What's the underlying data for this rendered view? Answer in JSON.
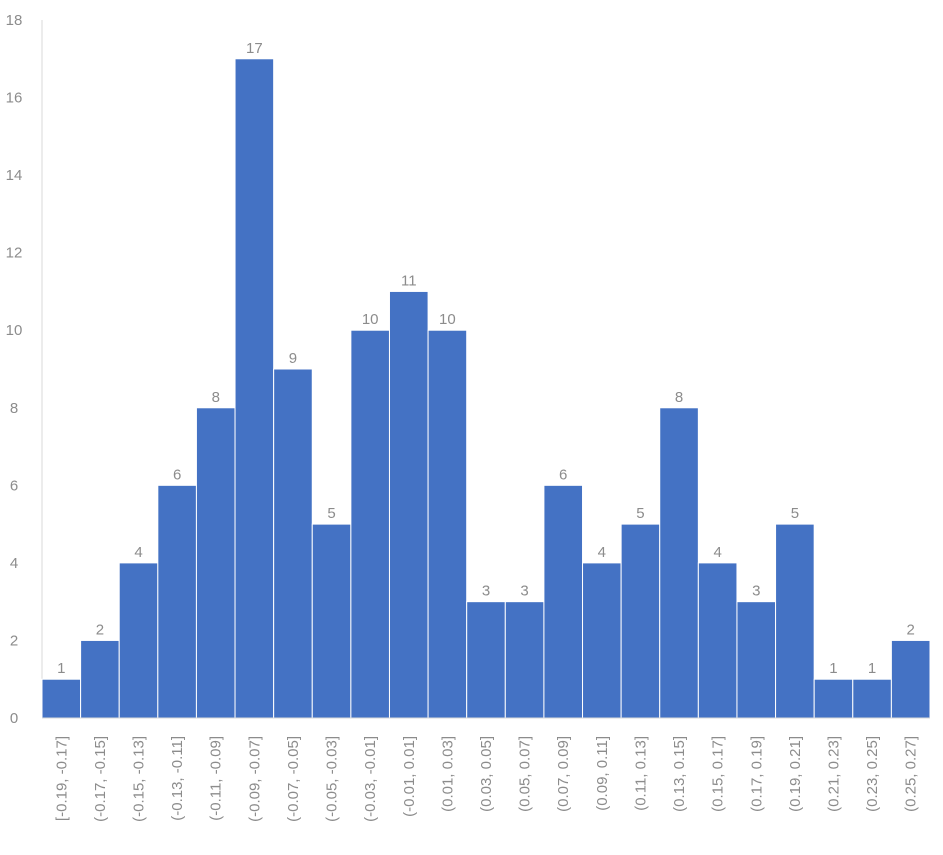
{
  "chart_data": {
    "type": "bar",
    "categories": [
      "[-0.19, -0.17]",
      "(-0.17, -0.15]",
      "(-0.15, -0.13]",
      "(-0.13, -0.11]",
      "(-0.11, -0.09]",
      "(-0.09, -0.07]",
      "(-0.07, -0.05]",
      "(-0.05, -0.03]",
      "(-0.03, -0.01]",
      "(-0.01, 0.01]",
      "(0.01, 0.03]",
      "(0.03, 0.05]",
      "(0.05, 0.07]",
      "(0.07, 0.09]",
      "(0.09, 0.11]",
      "(0.11, 0.13]",
      "(0.13, 0.15]",
      "(0.15, 0.17]",
      "(0.17, 0.19]",
      "(0.19, 0.21]",
      "(0.21, 0.23]",
      "(0.23, 0.25]",
      "(0.25, 0.27]"
    ],
    "values": [
      1,
      2,
      4,
      6,
      8,
      17,
      9,
      5,
      10,
      11,
      10,
      3,
      3,
      6,
      4,
      5,
      8,
      4,
      3,
      5,
      1,
      1,
      2
    ],
    "color": "#4472c4",
    "ylim": [
      0,
      18
    ],
    "yticks": [
      0,
      2,
      4,
      6,
      8,
      10,
      12,
      14,
      16,
      18
    ]
  }
}
